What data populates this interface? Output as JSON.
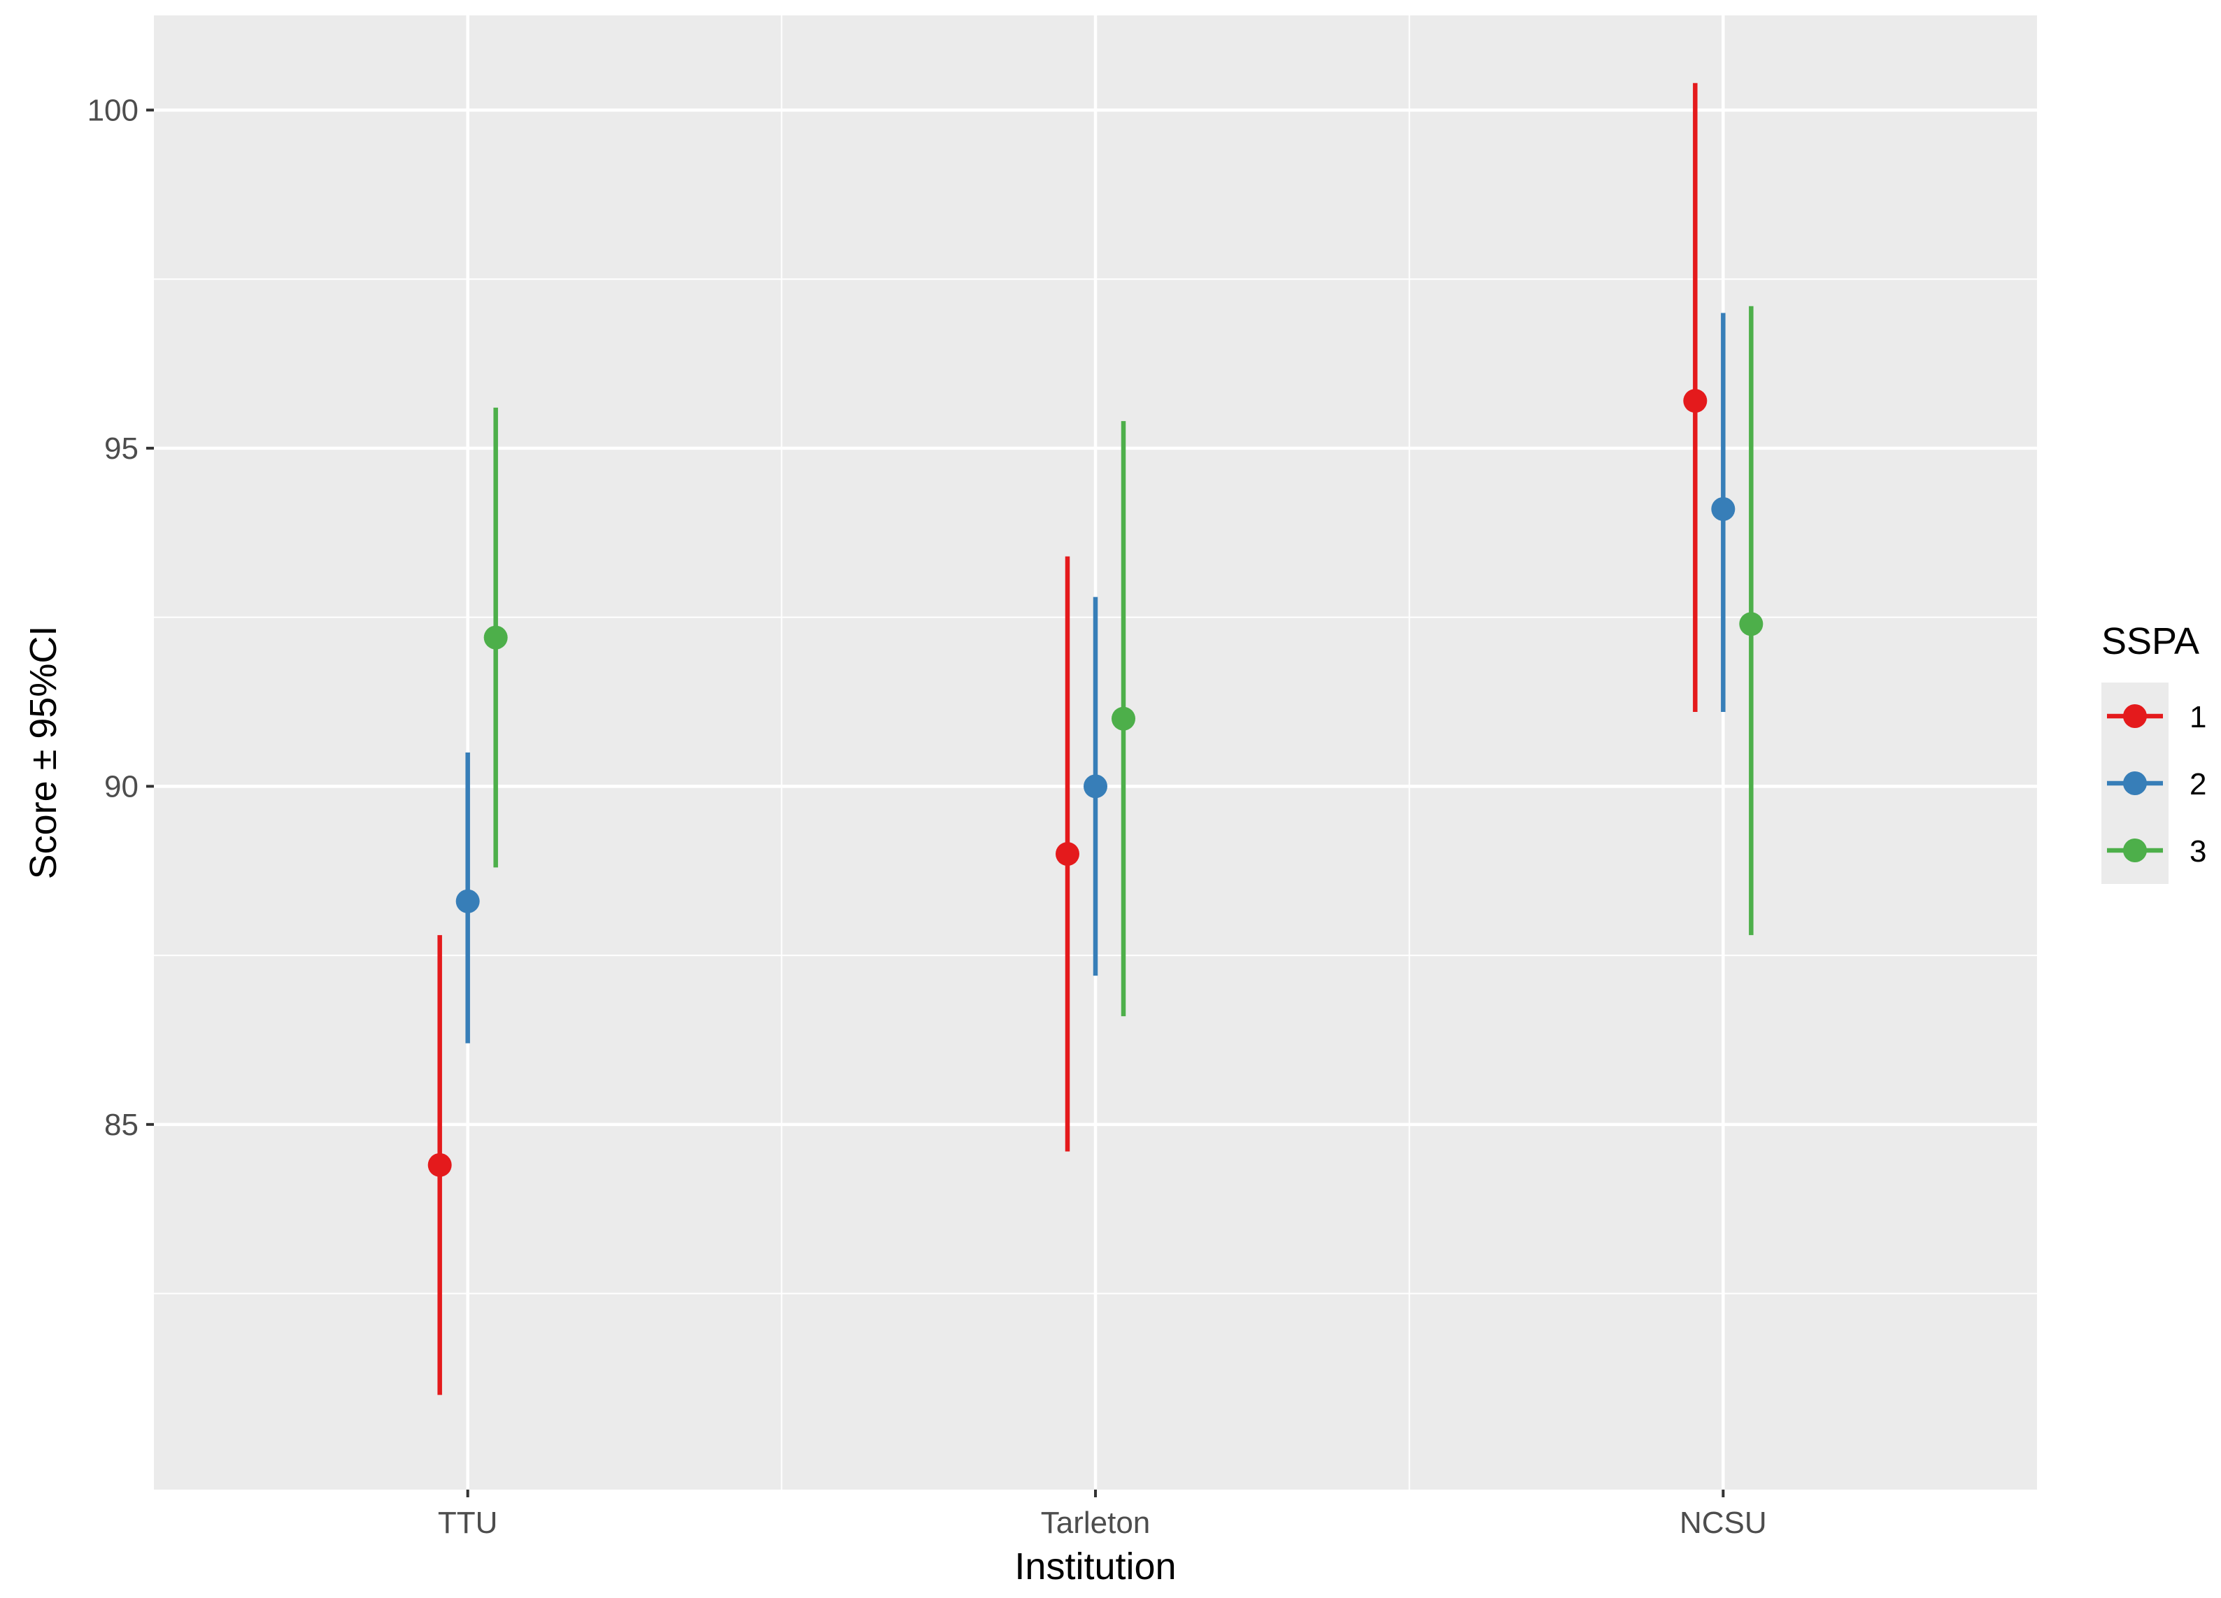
{
  "chart_data": {
    "type": "scatter",
    "subtype": "point-range (mean ± 95% CI)",
    "title": "",
    "xlabel": "Institution",
    "ylabel": "Score ± 95%CI",
    "categories": [
      "TTU",
      "Tarleton",
      "NCSU"
    ],
    "ylim": [
      79.6,
      101.4
    ],
    "yticks": [
      85,
      90,
      95,
      100
    ],
    "grid": true,
    "legend": {
      "title": "SSPA",
      "placement": "right"
    },
    "series": [
      {
        "name": "1",
        "color": "#E41A1C",
        "values": [
          84.4,
          89.0,
          95.7
        ],
        "ci_low": [
          81.0,
          84.6,
          91.1
        ],
        "ci_high": [
          87.8,
          93.4,
          100.4
        ]
      },
      {
        "name": "2",
        "color": "#377EB8",
        "values": [
          88.3,
          90.0,
          94.1
        ],
        "ci_low": [
          86.2,
          87.2,
          91.1
        ],
        "ci_high": [
          90.5,
          92.8,
          97.0
        ]
      },
      {
        "name": "3",
        "color": "#4DAF4A",
        "values": [
          92.2,
          91.0,
          92.4
        ],
        "ci_low": [
          88.8,
          86.6,
          87.8
        ],
        "ci_high": [
          95.6,
          95.4,
          97.1
        ]
      }
    ]
  }
}
